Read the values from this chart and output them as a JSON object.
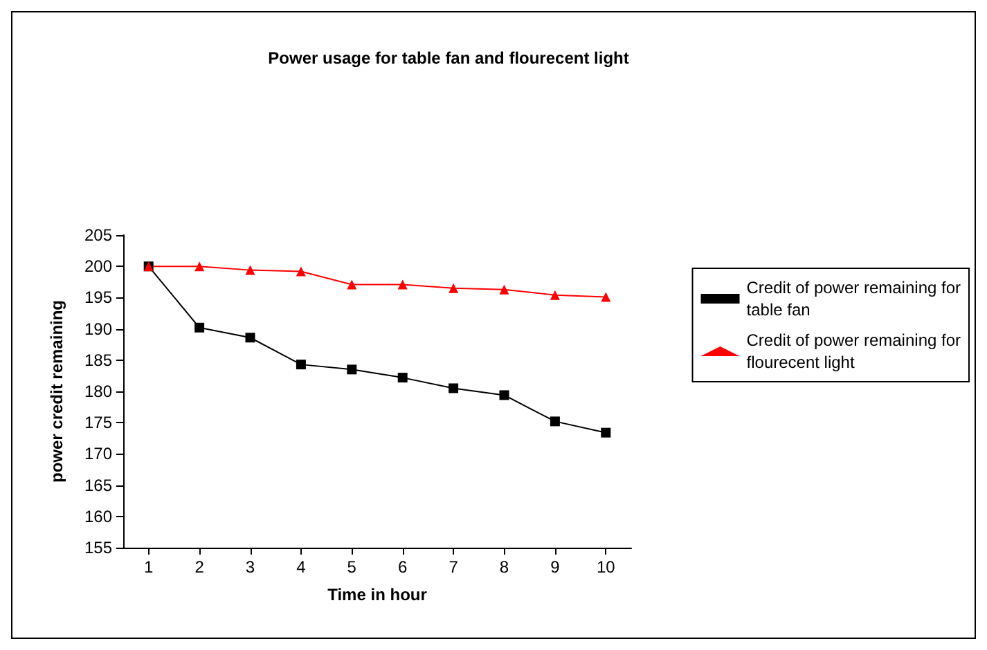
{
  "chart_data": {
    "type": "line",
    "title": "Power usage for table fan and flourecent light",
    "xlabel": "Time in hour",
    "ylabel": "power credit remaining",
    "categories": [
      "1",
      "2",
      "3",
      "4",
      "5",
      "6",
      "7",
      "8",
      "9",
      "10"
    ],
    "ylim": [
      155,
      205
    ],
    "yticks": [
      155,
      160,
      165,
      170,
      175,
      180,
      185,
      190,
      195,
      200,
      205
    ],
    "grid": false,
    "legend": "right",
    "line_style": "solid",
    "series": [
      {
        "name": "Credit of power remaining for table fan",
        "color": "#000000",
        "marker": "square",
        "values": [
          200,
          190.2,
          188.6,
          184.3,
          183.5,
          182.2,
          180.5,
          179.4,
          175.2,
          173.4
        ]
      },
      {
        "name": "Credit of power remaining for flourecent light",
        "color": "#ff0000",
        "marker": "triangle",
        "values": [
          200,
          200,
          199.4,
          199.2,
          197.1,
          197.1,
          196.5,
          196.3,
          195.4,
          195.1
        ]
      }
    ]
  }
}
